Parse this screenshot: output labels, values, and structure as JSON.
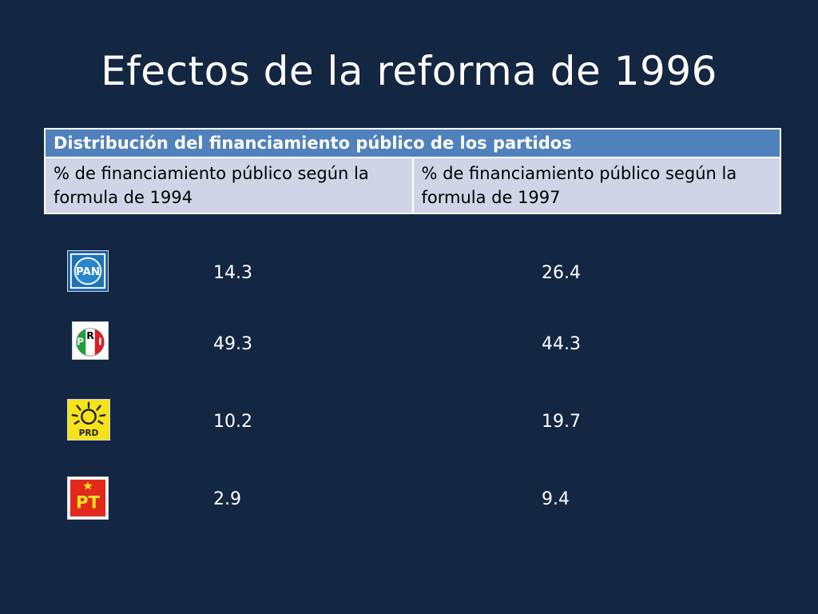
{
  "title": "Efectos de la reforma de 1996",
  "table": {
    "header": "Distribución del financiamiento público de los partidos",
    "col_1994": "% de financiamiento público según la formula de 1994",
    "col_1997": "% de financiamiento público según la formula de 1997"
  },
  "parties": [
    {
      "logo": "PAN",
      "logo_icon": "pan-logo-icon",
      "pct_1994": "14.3",
      "pct_1997": "26.4"
    },
    {
      "logo": "PRI",
      "logo_icon": "pri-logo-icon",
      "pct_1994": "49.3",
      "pct_1997": "44.3"
    },
    {
      "logo": "PRD",
      "logo_icon": "prd-logo-icon",
      "pct_1994": "10.2",
      "pct_1997": "19.7"
    },
    {
      "logo": "PT",
      "logo_icon": "pt-logo-icon",
      "pct_1994": "2.9",
      "pct_1997": "9.4"
    }
  ],
  "colors": {
    "background": "#132642",
    "table_header": "#4f81bd",
    "table_cell": "#cfd5e6"
  }
}
